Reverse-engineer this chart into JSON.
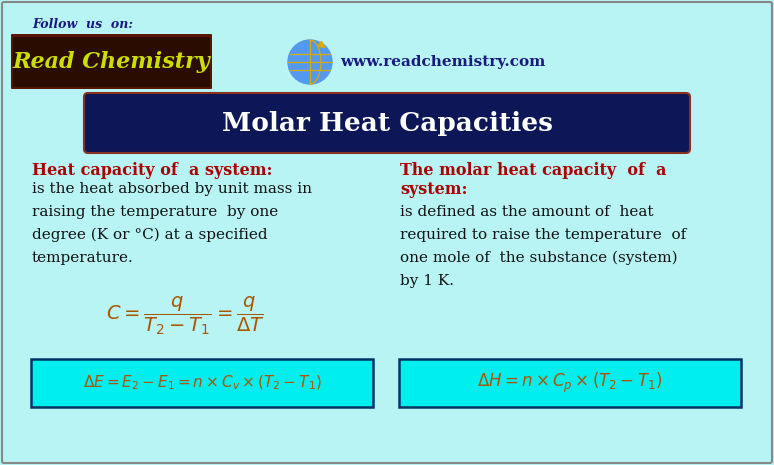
{
  "bg_color": "#b8f4f4",
  "title_text": "Molar Heat Capacities",
  "title_bg": "#0d1657",
  "title_fg": "#ffffff",
  "follow_text": "Follow  us  on:",
  "follow_color": "#1a1a7e",
  "brand_text": "Read Chemistry",
  "brand_color": "#ccdd00",
  "url_text": "www.readchemistry.com",
  "url_color": "#1a1a7e",
  "red_color": "#aa0000",
  "dark_color": "#111111",
  "formula_color": "#aa5500",
  "left_heading": "Heat capacity of  a system:",
  "left_body_1": "is the heat absorbed by unit mass in",
  "left_body_2": "raising the temperature  by one",
  "left_body_3": "degree (K or °C) at a specified",
  "left_body_4": "temperature.",
  "right_heading_1": "The molar heat capacity  of  a",
  "right_heading_2": "system:",
  "right_body_1": "is defined as the amount of  heat",
  "right_body_2": "required to raise the temperature  of",
  "right_body_3": "one mole of  the substance (system)",
  "right_body_4": "by 1 K."
}
